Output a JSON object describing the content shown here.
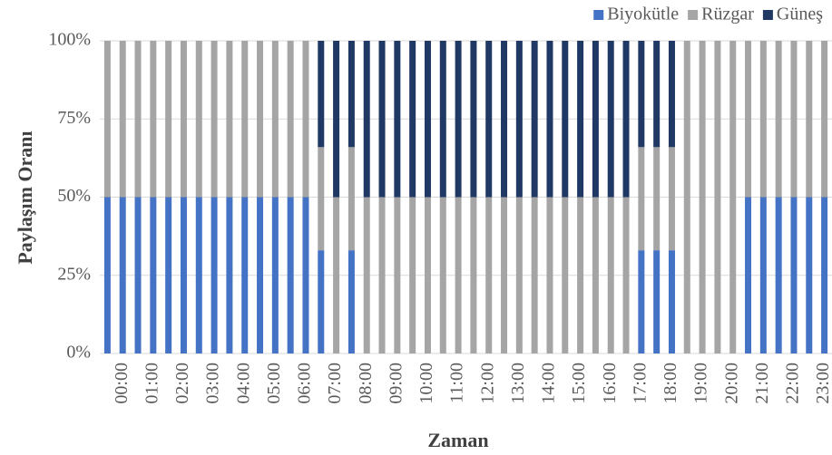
{
  "chart_data": {
    "type": "stacked_bar",
    "x_label": "Zaman",
    "y_label": "Paylaşım Oranı",
    "categories": [
      null,
      "00:00",
      null,
      "01:00",
      null,
      "02:00",
      null,
      "03:00",
      null,
      "04:00",
      null,
      "05:00",
      null,
      "06:00",
      null,
      "07:00",
      null,
      "08:00",
      null,
      "09:00",
      null,
      "10:00",
      null,
      "11:00",
      null,
      "12:00",
      null,
      "13:00",
      null,
      "14:00",
      null,
      "15:00",
      null,
      "16:00",
      null,
      "17:00",
      null,
      "18:00",
      null,
      "19:00",
      null,
      "20:00",
      null,
      "21:00",
      null,
      "22:00",
      null,
      "23:00"
    ],
    "series": [
      {
        "name": "Biyokütle",
        "color": "#4472c4",
        "values": [
          50,
          50,
          50,
          50,
          50,
          50,
          50,
          50,
          50,
          50,
          50,
          50,
          50,
          50,
          33,
          0,
          33,
          0,
          0,
          0,
          0,
          0,
          0,
          0,
          0,
          0,
          0,
          0,
          0,
          0,
          0,
          0,
          0,
          0,
          0,
          33,
          33,
          33,
          0,
          0,
          0,
          0,
          50,
          50,
          50,
          50,
          50,
          50
        ]
      },
      {
        "name": "Rüzgar",
        "color": "#a5a5a5",
        "values": [
          50,
          50,
          50,
          50,
          50,
          50,
          50,
          50,
          50,
          50,
          50,
          50,
          50,
          50,
          33,
          50,
          33,
          50,
          50,
          50,
          50,
          50,
          50,
          50,
          50,
          50,
          50,
          50,
          50,
          50,
          50,
          50,
          50,
          50,
          50,
          33,
          33,
          33,
          100,
          100,
          100,
          100,
          50,
          50,
          50,
          50,
          50,
          50
        ]
      },
      {
        "name": "Güneş",
        "color": "#203864",
        "values": [
          0,
          0,
          0,
          0,
          0,
          0,
          0,
          0,
          0,
          0,
          0,
          0,
          0,
          0,
          34,
          50,
          34,
          50,
          50,
          50,
          50,
          50,
          50,
          50,
          50,
          50,
          50,
          50,
          50,
          50,
          50,
          50,
          50,
          50,
          50,
          34,
          34,
          34,
          0,
          0,
          0,
          0,
          0,
          0,
          0,
          0,
          0,
          0
        ]
      }
    ],
    "ylim": [
      0,
      100
    ],
    "yticks": [
      {
        "value": 0,
        "label": "0%"
      },
      {
        "value": 25,
        "label": "25%"
      },
      {
        "value": 50,
        "label": "50%"
      },
      {
        "value": 75,
        "label": "75%"
      },
      {
        "value": 100,
        "label": "100%"
      }
    ],
    "grid": true,
    "legend": "top-right"
  }
}
